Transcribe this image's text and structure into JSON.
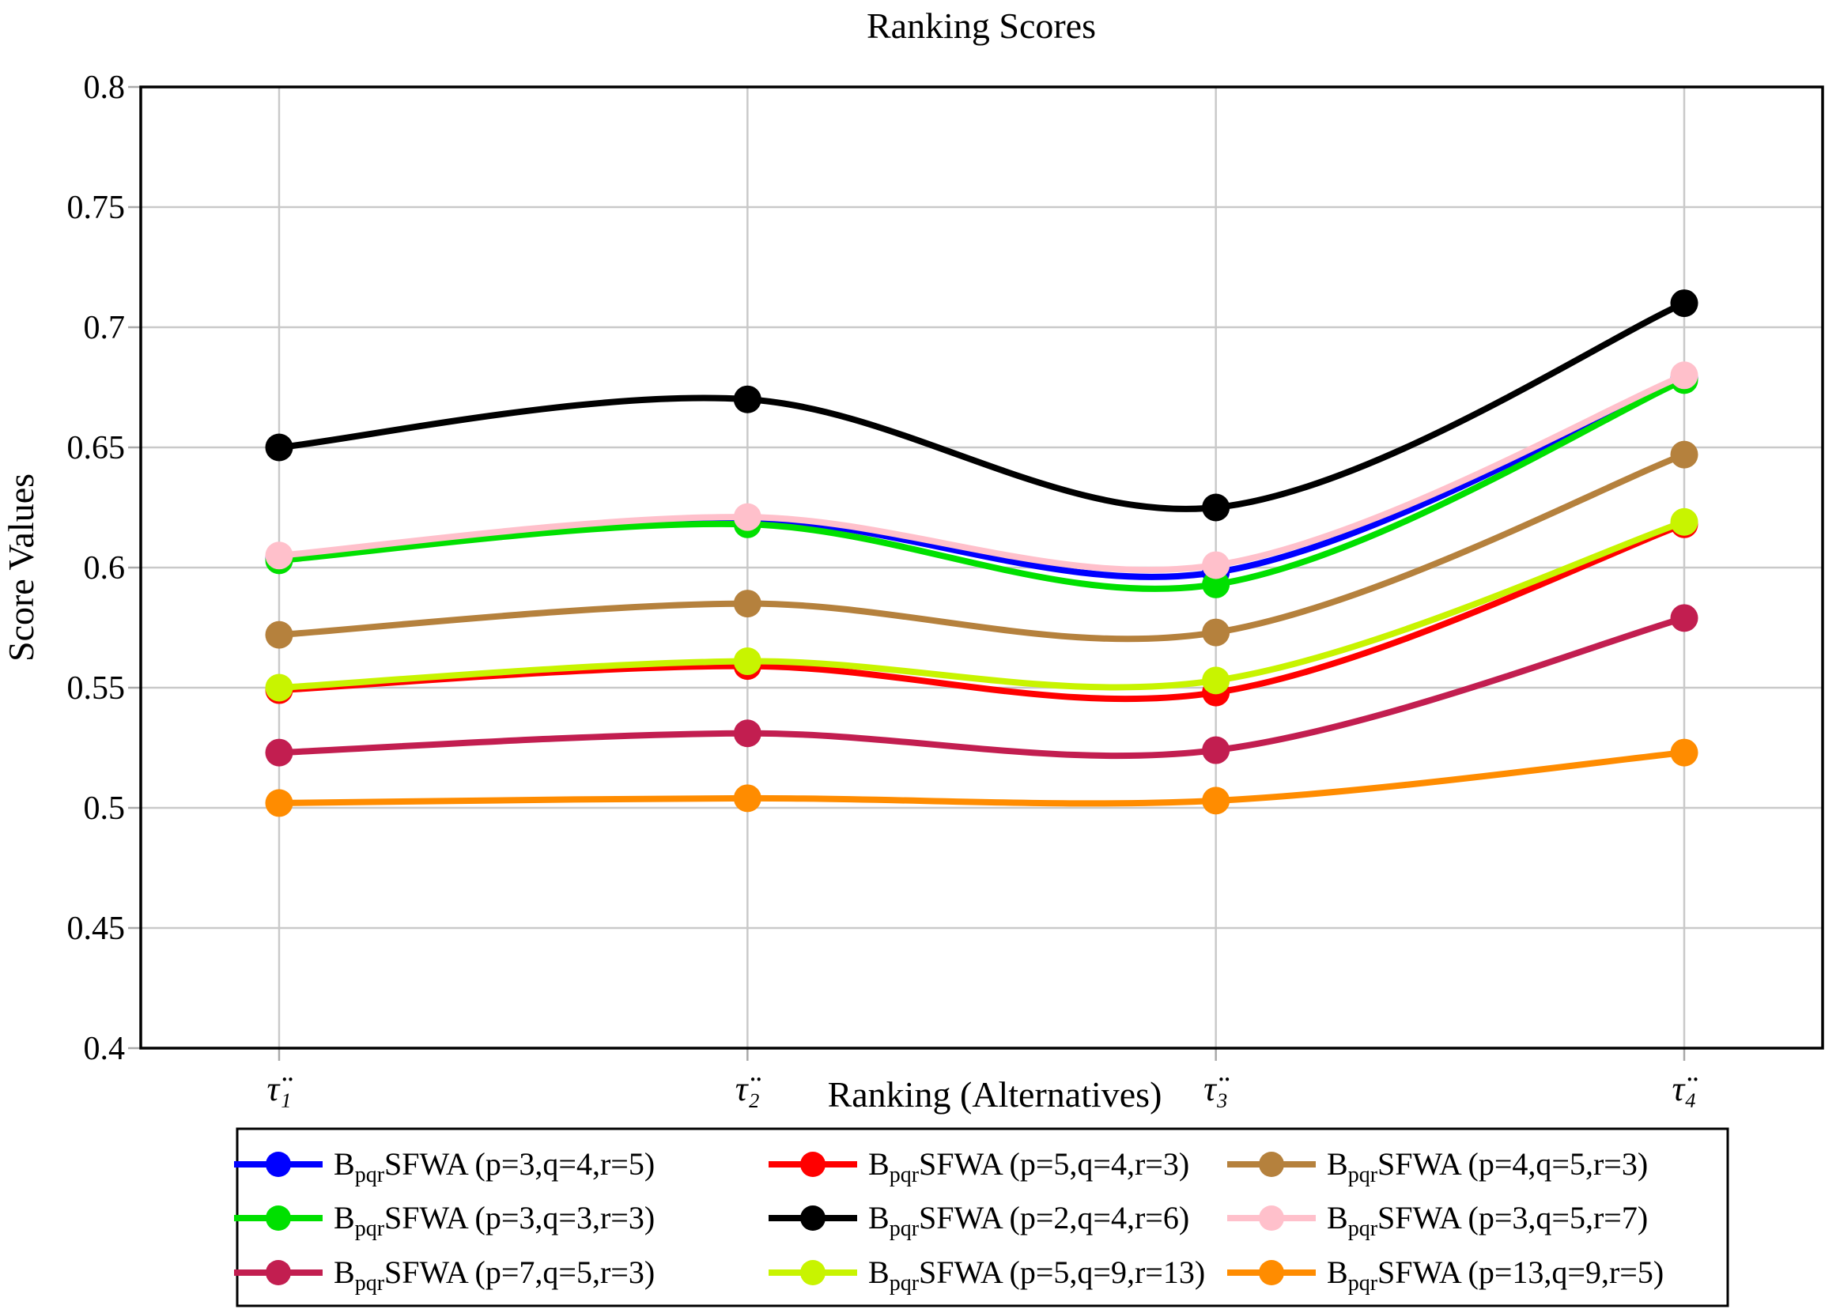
{
  "title": "Ranking Scores",
  "colors": {
    "background": "#FFFFFF",
    "axis": "#000000",
    "grid": "#C9C9C9",
    "tick": "#A9A9A9",
    "legend_border": "#000000"
  },
  "chart_data": {
    "type": "line",
    "title": "Ranking Scores",
    "xlabel": "Ranking (Alternatives)",
    "ylabel": "Score Values",
    "categories": [
      "τ̈₁",
      "τ̈₂",
      "τ̈₃",
      "τ̈₄"
    ],
    "ylim": [
      0.4,
      0.8
    ],
    "ytick_step": 0.05,
    "ytick_labels": [
      "0.4",
      "0.45",
      "0.5",
      "0.55",
      "0.6",
      "0.65",
      "0.7",
      "0.75",
      "0.8"
    ],
    "grid": true,
    "smooth": true,
    "legend_position": "below",
    "legend_columns": 3,
    "series": [
      {
        "name_prefix": "B",
        "name_sub": "pqr",
        "name_rest": "SFWA (p=3,q=4,r=5)",
        "color": "#0000FF",
        "values": [
          0.604,
          0.62,
          0.598,
          0.679
        ]
      },
      {
        "name_prefix": "B",
        "name_sub": "pqr",
        "name_rest": "SFWA (p=5,q=4,r=3)",
        "color": "#FF0000",
        "values": [
          0.549,
          0.559,
          0.548,
          0.618
        ]
      },
      {
        "name_prefix": "B",
        "name_sub": "pqr",
        "name_rest": "SFWA (p=4,q=5,r=3)",
        "color": "#B5813D",
        "values": [
          0.572,
          0.585,
          0.573,
          0.647
        ]
      },
      {
        "name_prefix": "B",
        "name_sub": "pqr",
        "name_rest": "SFWA (p=3,q=3,r=3)",
        "color": "#00E000",
        "values": [
          0.603,
          0.618,
          0.593,
          0.678
        ]
      },
      {
        "name_prefix": "B",
        "name_sub": "pqr",
        "name_rest": "SFWA (p=2,q=4,r=6)",
        "color": "#000000",
        "values": [
          0.65,
          0.67,
          0.625,
          0.71
        ]
      },
      {
        "name_prefix": "B",
        "name_sub": "pqr",
        "name_rest": "SFWA (p=3,q=5,r=7)",
        "color": "#FFC0CB",
        "values": [
          0.605,
          0.621,
          0.601,
          0.68
        ]
      },
      {
        "name_prefix": "B",
        "name_sub": "pqr",
        "name_rest": "SFWA (p=7,q=5,r=3)",
        "color": "#C21E50",
        "values": [
          0.523,
          0.531,
          0.524,
          0.579
        ]
      },
      {
        "name_prefix": "B",
        "name_sub": "pqr",
        "name_rest": "SFWA (p=5,q=9,r=13)",
        "color": "#C8F400",
        "values": [
          0.55,
          0.561,
          0.553,
          0.619
        ]
      },
      {
        "name_prefix": "B",
        "name_sub": "pqr",
        "name_rest": "SFWA (p=13,q=9,r=5)",
        "color": "#FF8C00",
        "values": [
          0.502,
          0.504,
          0.503,
          0.523
        ]
      }
    ]
  }
}
